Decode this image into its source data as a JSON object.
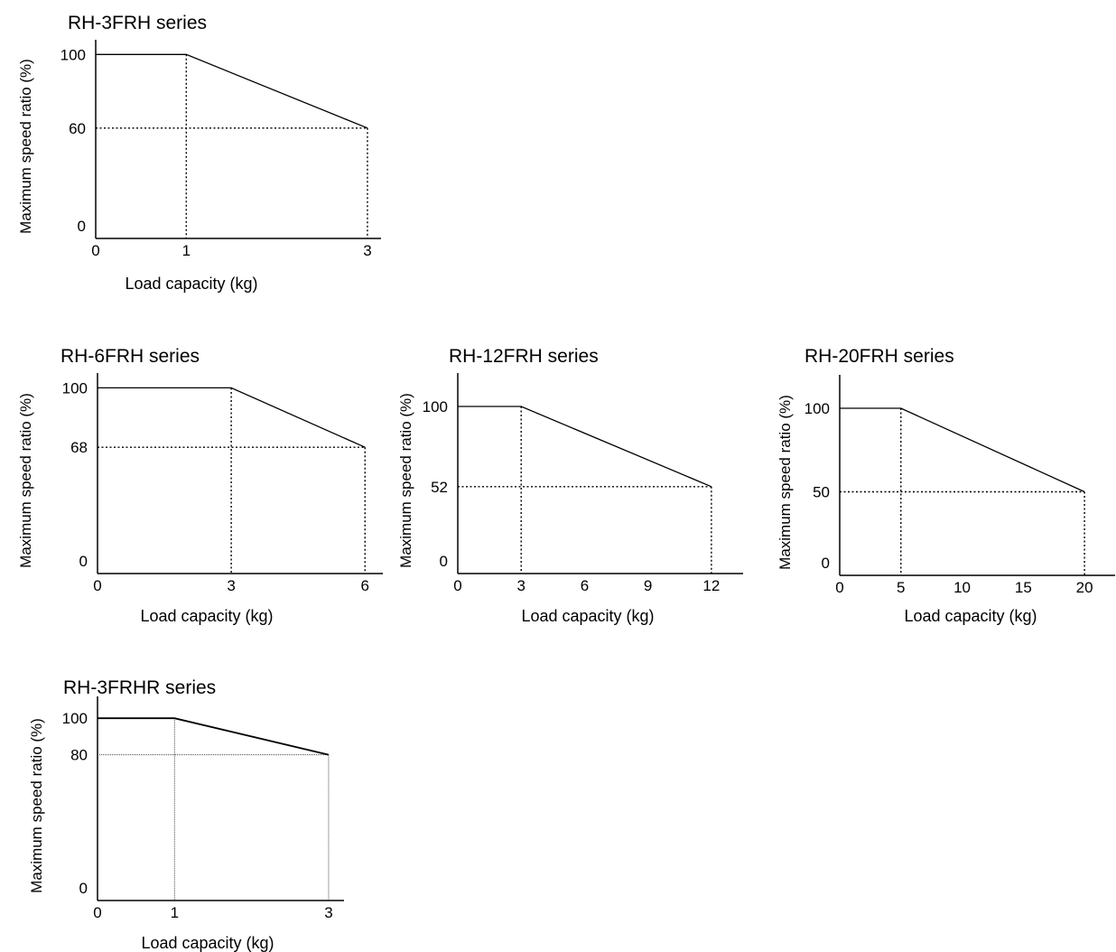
{
  "chart_data": [
    {
      "type": "line",
      "title": "RH-3FRH series",
      "xlabel": "Load capacity (kg)",
      "ylabel": "Maximum speed ratio (%)",
      "x_ticks": [
        "0",
        "1",
        "3"
      ],
      "y_ticks": [
        "0",
        "60",
        "100"
      ],
      "xlim": [
        0,
        3.15
      ],
      "ylim": [
        0,
        108
      ],
      "series": [
        {
          "x": [
            0,
            1,
            3
          ],
          "y": [
            100,
            100,
            60
          ]
        }
      ],
      "guides": [
        {
          "x": 1,
          "y": 100
        },
        {
          "x": 3,
          "y": 60
        }
      ],
      "grid": false
    },
    {
      "type": "line",
      "title": "RH-6FRH series",
      "xlabel": "Load capacity (kg)",
      "ylabel": "Maximum speed ratio (%)",
      "x_ticks": [
        "0",
        "3",
        "6"
      ],
      "y_ticks": [
        "0",
        "68",
        "100"
      ],
      "xlim": [
        0,
        6.4
      ],
      "ylim": [
        0,
        108
      ],
      "series": [
        {
          "x": [
            0,
            3,
            6
          ],
          "y": [
            100,
            100,
            68
          ]
        }
      ],
      "guides": [
        {
          "x": 3,
          "y": 100
        },
        {
          "x": 6,
          "y": 68
        }
      ],
      "grid": false
    },
    {
      "type": "line",
      "title": "RH-12FRH series",
      "xlabel": "Load capacity (kg)",
      "ylabel": "Maximum speed ratio (%)",
      "x_ticks": [
        "0",
        "3",
        "6",
        "9",
        "12"
      ],
      "y_ticks": [
        "0",
        "52",
        "100"
      ],
      "xlim": [
        0,
        13.5
      ],
      "ylim": [
        0,
        120
      ],
      "series": [
        {
          "x": [
            0,
            3,
            12
          ],
          "y": [
            100,
            100,
            52
          ]
        }
      ],
      "guides": [
        {
          "x": 3,
          "y": 100
        },
        {
          "x": 12,
          "y": 52
        }
      ],
      "grid": false
    },
    {
      "type": "line",
      "title": "RH-20FRH series",
      "xlabel": "Load capacity (kg)",
      "ylabel": "Maximum speed ratio (%)",
      "x_ticks": [
        "0",
        "5",
        "10",
        "15",
        "20"
      ],
      "y_ticks": [
        "0",
        "50",
        "100"
      ],
      "xlim": [
        0,
        22.5
      ],
      "ylim": [
        0,
        120
      ],
      "series": [
        {
          "x": [
            0,
            5,
            20
          ],
          "y": [
            100,
            100,
            50
          ]
        }
      ],
      "guides": [
        {
          "x": 5,
          "y": 100
        },
        {
          "x": 20,
          "y": 50
        }
      ],
      "grid": false
    },
    {
      "type": "line",
      "title": "RH-3FRHR series",
      "xlabel": "Load capacity (kg)",
      "ylabel": "Maximum speed ratio (%)",
      "x_ticks": [
        "0",
        "1",
        "3"
      ],
      "y_ticks": [
        "0",
        "80",
        "100"
      ],
      "xlim": [
        0,
        3.2
      ],
      "ylim": [
        0,
        112
      ],
      "series": [
        {
          "x": [
            0,
            1,
            3
          ],
          "y": [
            100,
            100,
            80
          ]
        }
      ],
      "guides": [
        {
          "x": 1,
          "y": 100
        },
        {
          "x": 3,
          "y": 80
        }
      ],
      "grid": false
    }
  ]
}
